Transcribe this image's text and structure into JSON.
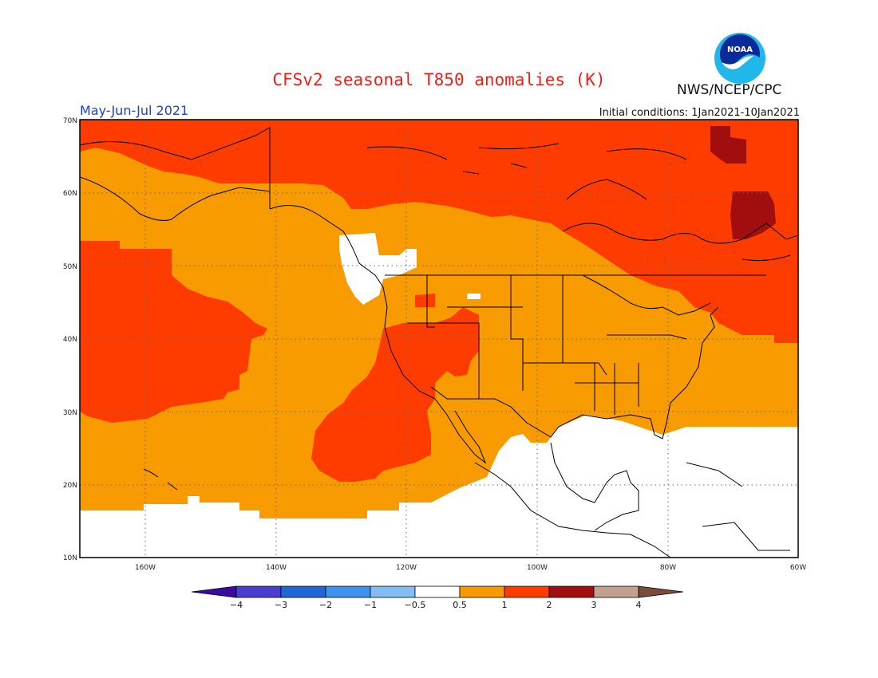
{
  "title": "CFSv2 seasonal T850 anomalies (K)",
  "period": "May-Jun-Jul 2021",
  "initial_conditions": "Initial conditions: 1Jan2021-10Jan2021",
  "agency": "NWS/NCEP/CPC",
  "logo_text": "NOAA",
  "lat_labels": [
    "70N",
    "60N",
    "50N",
    "40N",
    "30N",
    "20N",
    "10N"
  ],
  "lon_labels": [
    "160W",
    "140W",
    "120W",
    "100W",
    "80W",
    "60W"
  ],
  "colorbar": {
    "labels": [
      "-4",
      "-3",
      "-2",
      "-1",
      "-0.5",
      "0.5",
      "1",
      "2",
      "3",
      "4"
    ],
    "colors": [
      "#3b0aa0",
      "#4a3ed0",
      "#1f66d8",
      "#3d92ee",
      "#82bdf3",
      "#ffffff",
      "#f89b00",
      "#ff3c00",
      "#a20d0d",
      "#c5a090",
      "#7a4a3a"
    ]
  },
  "legend_colors": {
    "white": "#ffffff",
    "orange": "#f89b00",
    "red": "#ff3c00",
    "darkred": "#a20d0d"
  }
}
